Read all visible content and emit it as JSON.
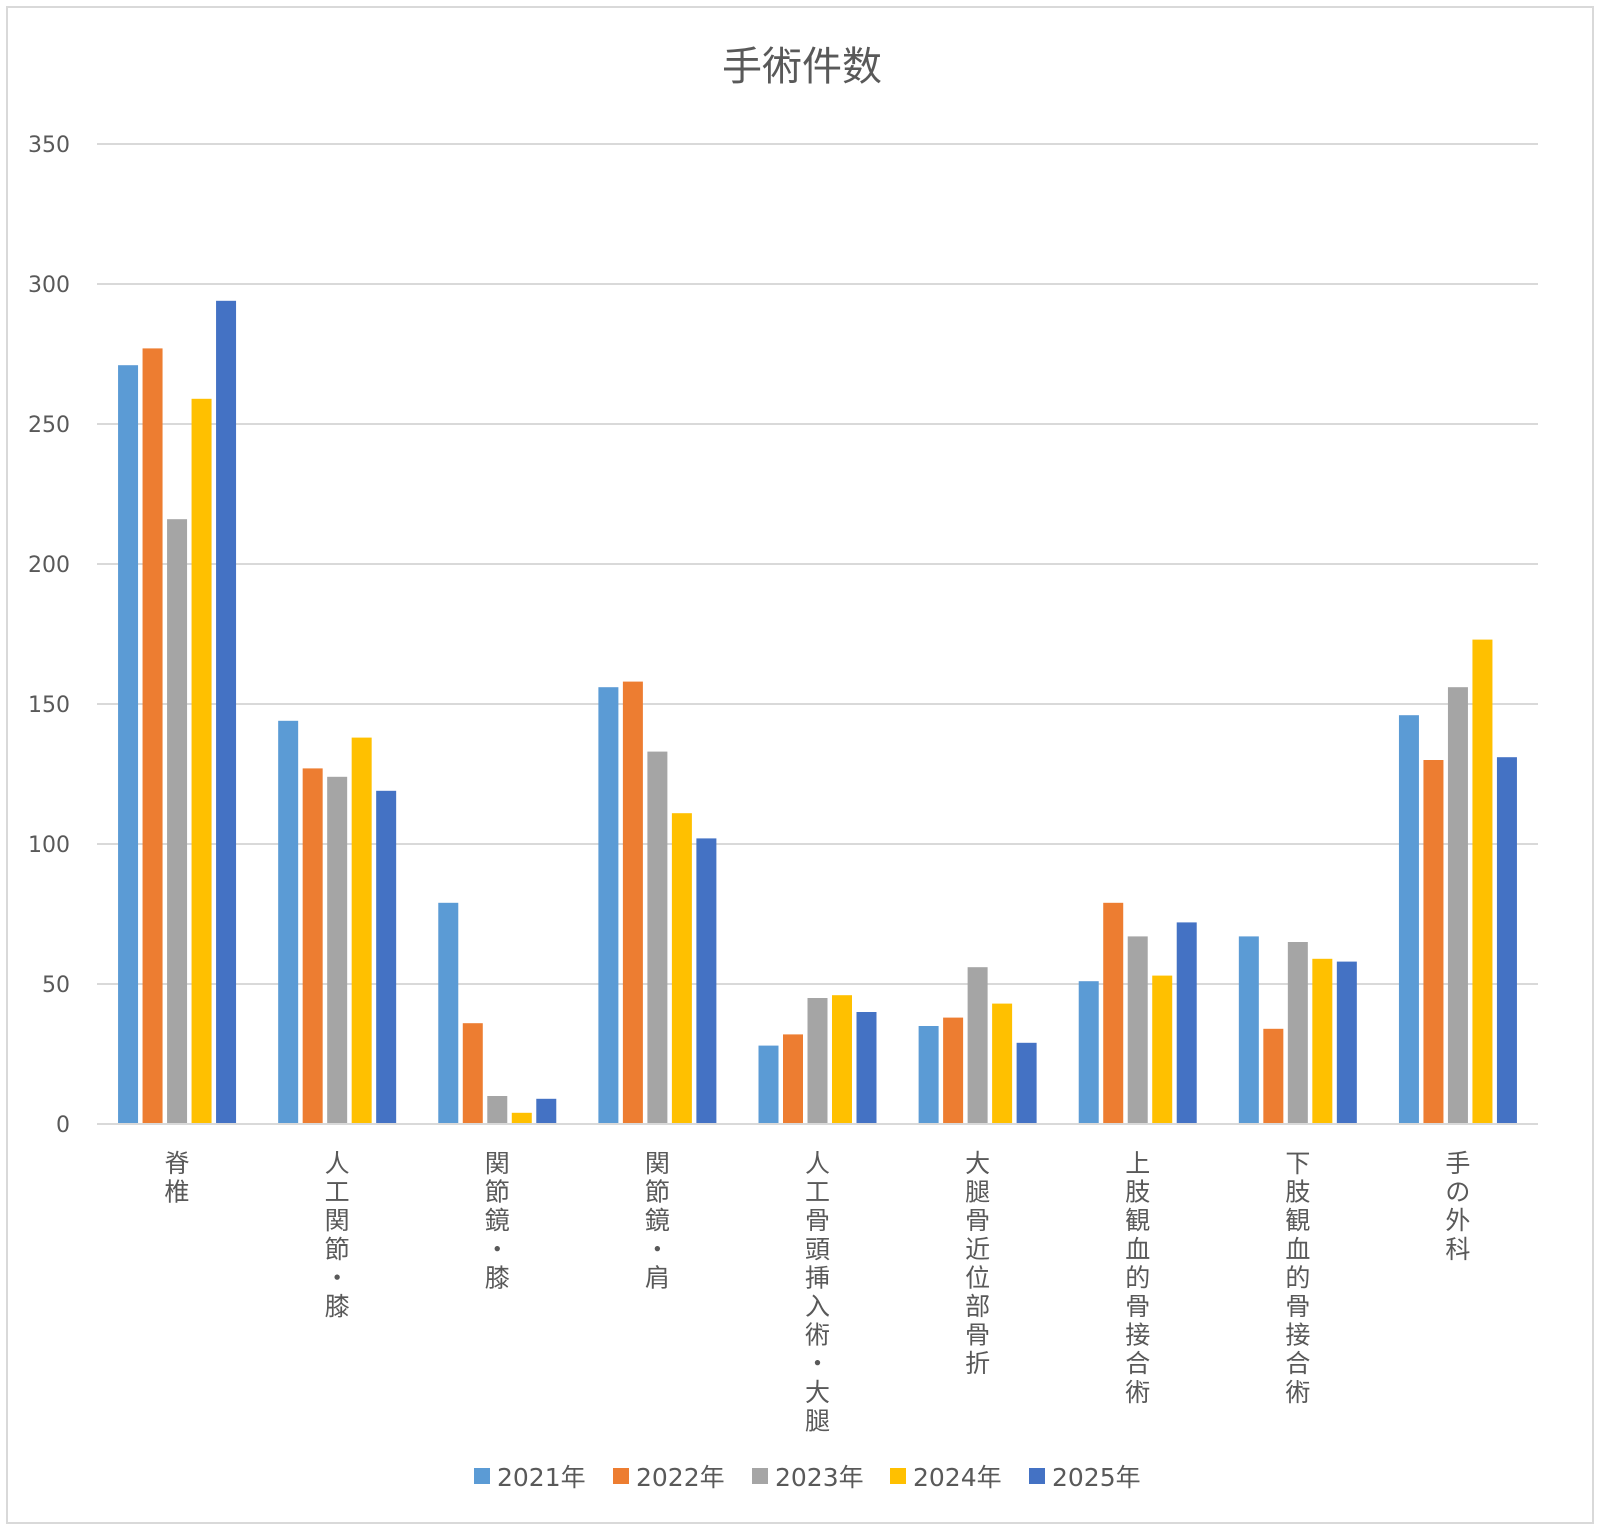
{
  "chart_data": {
    "type": "bar",
    "title": "手術件数",
    "xlabel": "",
    "ylabel": "",
    "ylim": [
      0,
      350
    ],
    "yticks": [
      0,
      50,
      100,
      150,
      200,
      250,
      300,
      350
    ],
    "grid": true,
    "legend_position": "bottom",
    "categories": [
      "脊椎",
      "人工関節・膝",
      "関節鏡・膝",
      "関節鏡・肩",
      "人工骨頭挿入術・大腿",
      "大腿骨近位部骨折",
      "上肢観血的骨接合術",
      "下肢観血的骨接合術",
      "手の外科"
    ],
    "series": [
      {
        "name": "2021年",
        "color": "#5b9bd5",
        "values": [
          271,
          144,
          79,
          156,
          28,
          35,
          51,
          67,
          146
        ]
      },
      {
        "name": "2022年",
        "color": "#ed7d31",
        "values": [
          277,
          127,
          36,
          158,
          32,
          38,
          79,
          34,
          130
        ]
      },
      {
        "name": "2023年",
        "color": "#a5a5a5",
        "values": [
          216,
          124,
          10,
          133,
          45,
          56,
          67,
          65,
          156
        ]
      },
      {
        "name": "2024年",
        "color": "#ffc000",
        "values": [
          259,
          138,
          4,
          111,
          46,
          43,
          53,
          59,
          173
        ]
      },
      {
        "name": "2025年",
        "color": "#4472c4",
        "values": [
          294,
          119,
          9,
          102,
          40,
          29,
          72,
          58,
          131
        ]
      }
    ]
  }
}
